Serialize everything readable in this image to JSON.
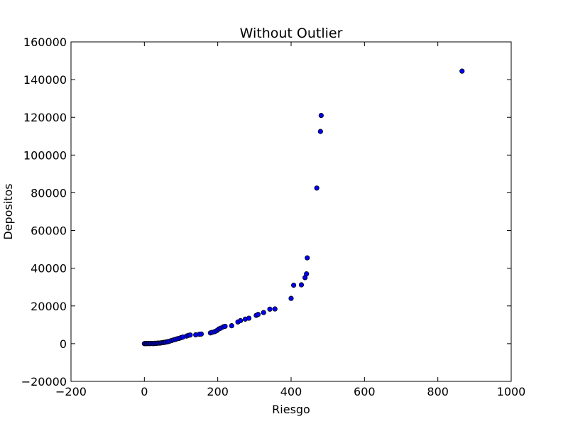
{
  "chart_data": {
    "type": "scatter",
    "title": "Without Outlier",
    "xlabel": "Riesgo",
    "ylabel": "Depositos",
    "xlim": [
      -200,
      1000
    ],
    "ylim": [
      -20000,
      160000
    ],
    "xticks": [
      -200,
      0,
      200,
      400,
      600,
      800,
      1000
    ],
    "yticks": [
      -20000,
      0,
      20000,
      40000,
      60000,
      80000,
      100000,
      120000,
      140000,
      160000
    ],
    "xtick_labels": [
      "−200",
      "0",
      "200",
      "400",
      "600",
      "800",
      "1000"
    ],
    "ytick_labels": [
      "−20000",
      "0",
      "20000",
      "40000",
      "60000",
      "80000",
      "100000",
      "120000",
      "140000",
      "160000"
    ],
    "grid": false,
    "marker_color": "#0000ff",
    "marker_edge_color": "#000000",
    "points": [
      {
        "x": 0,
        "y": 0
      },
      {
        "x": 3,
        "y": 100
      },
      {
        "x": 6,
        "y": 0
      },
      {
        "x": 9,
        "y": 50
      },
      {
        "x": 12,
        "y": 100
      },
      {
        "x": 15,
        "y": 0
      },
      {
        "x": 18,
        "y": 150
      },
      {
        "x": 22,
        "y": 100
      },
      {
        "x": 25,
        "y": 0
      },
      {
        "x": 28,
        "y": 200
      },
      {
        "x": 32,
        "y": 150
      },
      {
        "x": 35,
        "y": 250
      },
      {
        "x": 38,
        "y": 300
      },
      {
        "x": 42,
        "y": 300
      },
      {
        "x": 45,
        "y": 400
      },
      {
        "x": 48,
        "y": 500
      },
      {
        "x": 52,
        "y": 600
      },
      {
        "x": 55,
        "y": 700
      },
      {
        "x": 58,
        "y": 800
      },
      {
        "x": 62,
        "y": 1000
      },
      {
        "x": 65,
        "y": 1100
      },
      {
        "x": 70,
        "y": 1400
      },
      {
        "x": 75,
        "y": 1700
      },
      {
        "x": 80,
        "y": 2000
      },
      {
        "x": 85,
        "y": 2300
      },
      {
        "x": 90,
        "y": 2600
      },
      {
        "x": 95,
        "y": 2800
      },
      {
        "x": 100,
        "y": 3200
      },
      {
        "x": 105,
        "y": 3500
      },
      {
        "x": 115,
        "y": 4000
      },
      {
        "x": 120,
        "y": 4400
      },
      {
        "x": 125,
        "y": 4600
      },
      {
        "x": 140,
        "y": 4700
      },
      {
        "x": 150,
        "y": 5000
      },
      {
        "x": 155,
        "y": 5100
      },
      {
        "x": 180,
        "y": 5700
      },
      {
        "x": 185,
        "y": 6000
      },
      {
        "x": 192,
        "y": 6400
      },
      {
        "x": 198,
        "y": 7000
      },
      {
        "x": 203,
        "y": 7800
      },
      {
        "x": 208,
        "y": 8200
      },
      {
        "x": 215,
        "y": 8900
      },
      {
        "x": 220,
        "y": 9200
      },
      {
        "x": 238,
        "y": 9500
      },
      {
        "x": 255,
        "y": 11500
      },
      {
        "x": 262,
        "y": 12200
      },
      {
        "x": 275,
        "y": 13000
      },
      {
        "x": 285,
        "y": 13500
      },
      {
        "x": 305,
        "y": 15000
      },
      {
        "x": 310,
        "y": 15500
      },
      {
        "x": 325,
        "y": 16500
      },
      {
        "x": 342,
        "y": 18300
      },
      {
        "x": 356,
        "y": 18400
      },
      {
        "x": 400,
        "y": 24000
      },
      {
        "x": 407,
        "y": 31000
      },
      {
        "x": 428,
        "y": 31200
      },
      {
        "x": 438,
        "y": 35000
      },
      {
        "x": 442,
        "y": 37000
      },
      {
        "x": 444,
        "y": 45500
      },
      {
        "x": 470,
        "y": 82500
      },
      {
        "x": 480,
        "y": 112500
      },
      {
        "x": 482,
        "y": 121000
      },
      {
        "x": 866,
        "y": 144500
      }
    ]
  }
}
